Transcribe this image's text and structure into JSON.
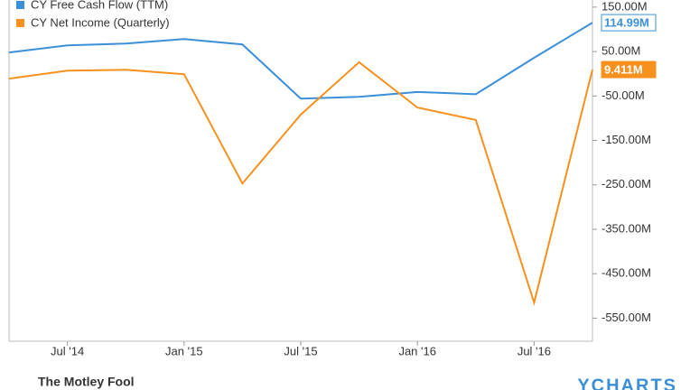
{
  "chart_data": {
    "type": "line",
    "categories": [
      null,
      "Jul '14",
      null,
      "Jan '15",
      null,
      "Jul '15",
      null,
      "Jan '16",
      null,
      "Jul '16",
      null
    ],
    "series": [
      {
        "name": "CY Free Cash Flow (TTM)",
        "color": "#3b8fd9",
        "values": [
          48,
          64,
          68,
          78,
          66,
          -56,
          -52,
          -41,
          -46,
          36,
          114.99
        ],
        "value_labels": [
          null,
          null,
          null,
          null,
          null,
          null,
          null,
          null,
          null,
          null,
          "114.99M"
        ]
      },
      {
        "name": "CY Net Income (Quarterly)",
        "color": "#f7911e",
        "values": [
          -11,
          7,
          9,
          -1,
          -247,
          -92,
          26,
          -76,
          -104,
          -515,
          9.411
        ],
        "value_labels": [
          null,
          null,
          null,
          null,
          null,
          null,
          null,
          null,
          null,
          null,
          "9.411M"
        ]
      }
    ],
    "ylim": [
      -602,
      166
    ],
    "yticks": [
      {
        "value": 150,
        "label": "150.00M"
      },
      {
        "value": 50,
        "label": "50.00M"
      },
      {
        "value": -50,
        "label": "-50.00M"
      },
      {
        "value": -150,
        "label": "-150.00M"
      },
      {
        "value": -250,
        "label": "-250.00M"
      },
      {
        "value": -350,
        "label": "-350.00M"
      },
      {
        "value": -450,
        "label": "-450.00M"
      },
      {
        "value": -550,
        "label": "-550.00M"
      }
    ],
    "legend": "top-left",
    "footer_left": "The Motley Fool",
    "footer_right": "YCHARTS"
  }
}
